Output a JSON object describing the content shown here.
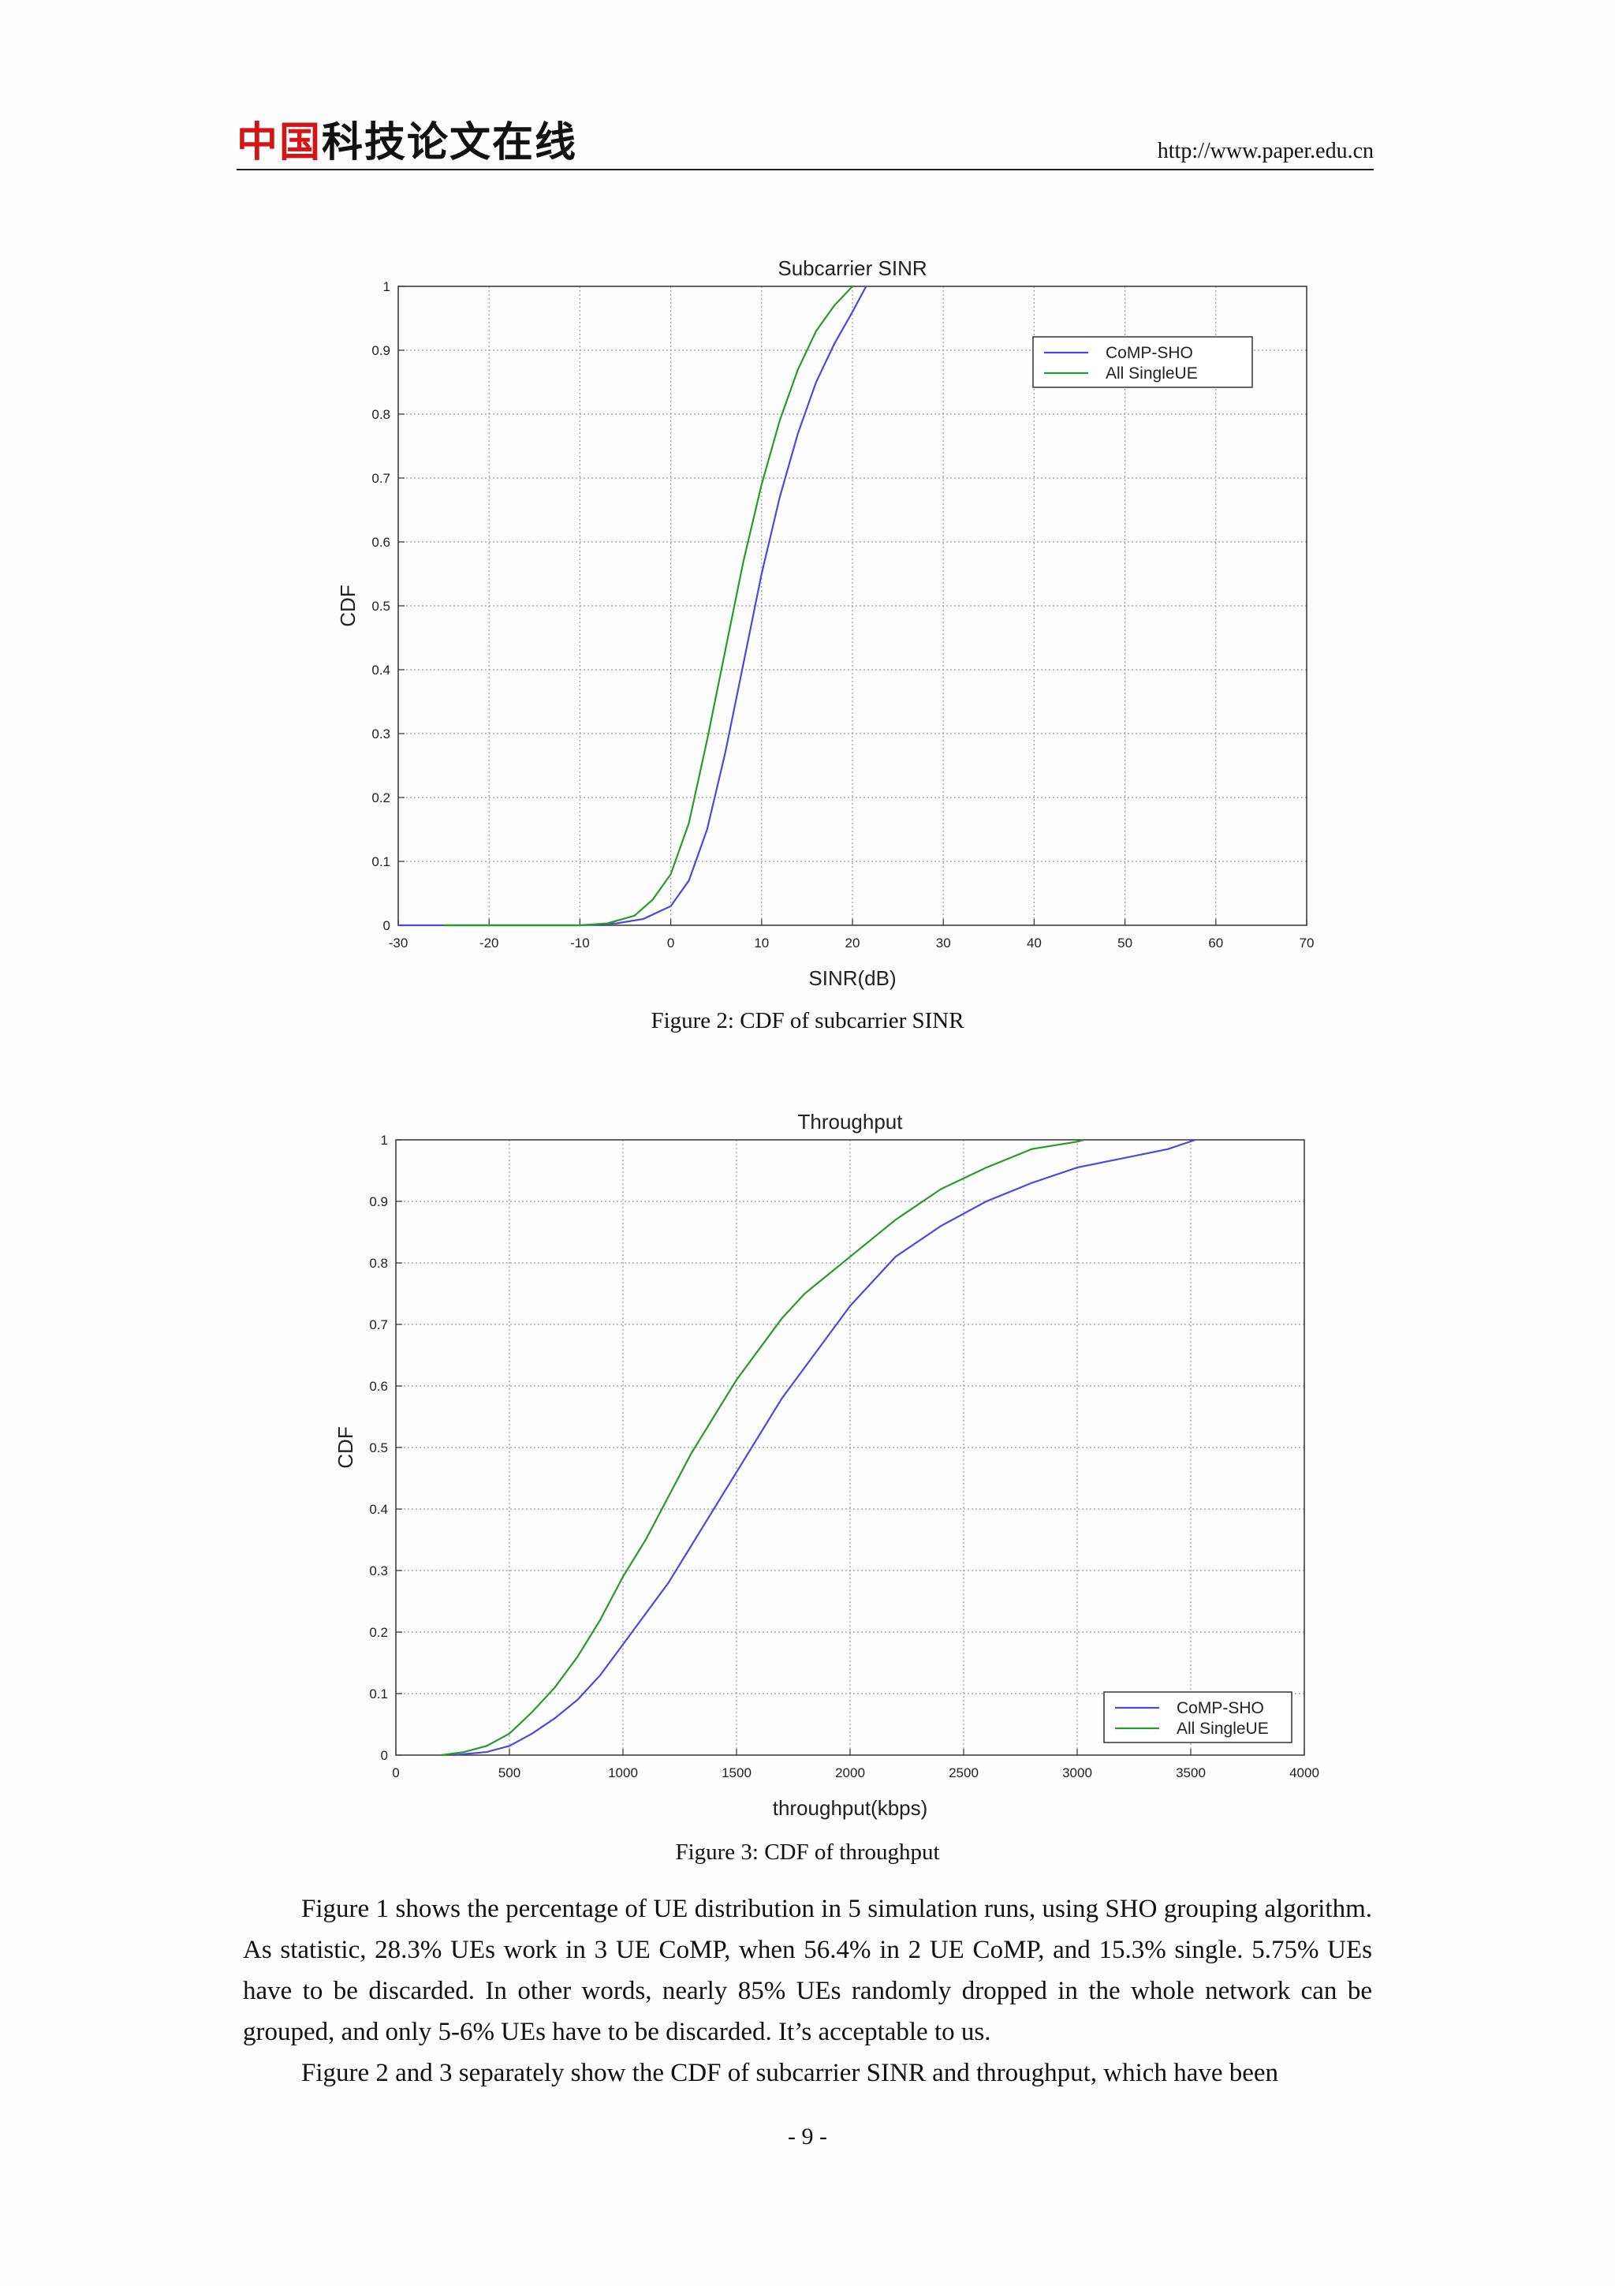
{
  "header": {
    "logo_red": "中国",
    "logo_rest": "科技论文在线",
    "url": "http://www.paper.edu.cn"
  },
  "figures": [
    {
      "caption": "Figure 2: CDF of subcarrier SINR"
    },
    {
      "caption": "Figure 3: CDF of throughput"
    }
  ],
  "chart_data": [
    {
      "type": "line",
      "title": "Subcarrier SINR",
      "xlabel": "SINR(dB)",
      "ylabel": "CDF",
      "xlim": [
        -30,
        70
      ],
      "ylim": [
        0,
        1
      ],
      "xticks": [
        -30,
        -20,
        -10,
        0,
        10,
        20,
        30,
        40,
        50,
        60,
        70
      ],
      "yticks": [
        0,
        0.1,
        0.2,
        0.3,
        0.4,
        0.5,
        0.6,
        0.7,
        0.8,
        0.9,
        1
      ],
      "grid": true,
      "legend_position": "top-right",
      "series": [
        {
          "name": "CoMP-SHO",
          "color": "#4a4ae0",
          "x": [
            -30,
            -10,
            -6,
            -3,
            0,
            2,
            4,
            6,
            8,
            10,
            12,
            14,
            16,
            18,
            20,
            21.5
          ],
          "y": [
            0,
            0,
            0.003,
            0.01,
            0.03,
            0.07,
            0.15,
            0.27,
            0.41,
            0.55,
            0.67,
            0.77,
            0.85,
            0.91,
            0.96,
            1.0
          ]
        },
        {
          "name": "All SingleUE",
          "color": "#2a9a2a",
          "x": [
            -25,
            -10,
            -7,
            -4,
            -2,
            0,
            2,
            4,
            6,
            8,
            10,
            12,
            14,
            16,
            18,
            20
          ],
          "y": [
            0,
            0,
            0.003,
            0.015,
            0.04,
            0.08,
            0.16,
            0.29,
            0.43,
            0.57,
            0.69,
            0.79,
            0.87,
            0.93,
            0.97,
            1.0
          ]
        }
      ]
    },
    {
      "type": "line",
      "title": "Throughput",
      "xlabel": "throughput(kbps)",
      "ylabel": "CDF",
      "xlim": [
        0,
        4000
      ],
      "ylim": [
        0,
        1
      ],
      "xticks": [
        0,
        500,
        1000,
        1500,
        2000,
        2500,
        3000,
        3500,
        4000
      ],
      "yticks": [
        0,
        0.1,
        0.2,
        0.3,
        0.4,
        0.5,
        0.6,
        0.7,
        0.8,
        0.9,
        1
      ],
      "grid": true,
      "legend_position": "bottom-right",
      "series": [
        {
          "name": "CoMP-SHO",
          "color": "#4a4ae0",
          "x": [
            250,
            400,
            500,
            600,
            700,
            800,
            900,
            1000,
            1100,
            1200,
            1300,
            1400,
            1500,
            1600,
            1700,
            1800,
            1900,
            2000,
            2100,
            2200,
            2400,
            2600,
            2800,
            3000,
            3200,
            3400,
            3520
          ],
          "y": [
            0,
            0.005,
            0.015,
            0.035,
            0.06,
            0.09,
            0.13,
            0.18,
            0.23,
            0.28,
            0.34,
            0.4,
            0.46,
            0.52,
            0.58,
            0.63,
            0.68,
            0.73,
            0.77,
            0.81,
            0.86,
            0.9,
            0.93,
            0.955,
            0.97,
            0.985,
            1.0
          ]
        },
        {
          "name": "All SingleUE",
          "color": "#2a9a2a",
          "x": [
            200,
            300,
            400,
            500,
            600,
            700,
            800,
            900,
            1000,
            1100,
            1200,
            1300,
            1400,
            1500,
            1600,
            1700,
            1800,
            1900,
            2000,
            2200,
            2400,
            2600,
            2800,
            3000,
            3030
          ],
          "y": [
            0,
            0.005,
            0.015,
            0.035,
            0.07,
            0.11,
            0.16,
            0.22,
            0.29,
            0.35,
            0.42,
            0.49,
            0.55,
            0.61,
            0.66,
            0.71,
            0.75,
            0.78,
            0.81,
            0.87,
            0.92,
            0.955,
            0.985,
            0.997,
            1.0
          ]
        }
      ]
    }
  ],
  "body": {
    "paragraphs": [
      "Figure 1 shows the percentage of UE distribution in 5 simulation runs, using SHO grouping algorithm. As statistic, 28.3% UEs work in 3 UE CoMP, when 56.4% in 2 UE CoMP, and 15.3% single. 5.75% UEs have to be discarded. In other words, nearly 85% UEs randomly dropped in the whole network can be grouped, and only 5-6% UEs have to be discarded. It’s acceptable to us.",
      "Figure 2 and 3 separately show the CDF of subcarrier SINR and throughput, which have been"
    ]
  },
  "page_number": "- 9 -"
}
